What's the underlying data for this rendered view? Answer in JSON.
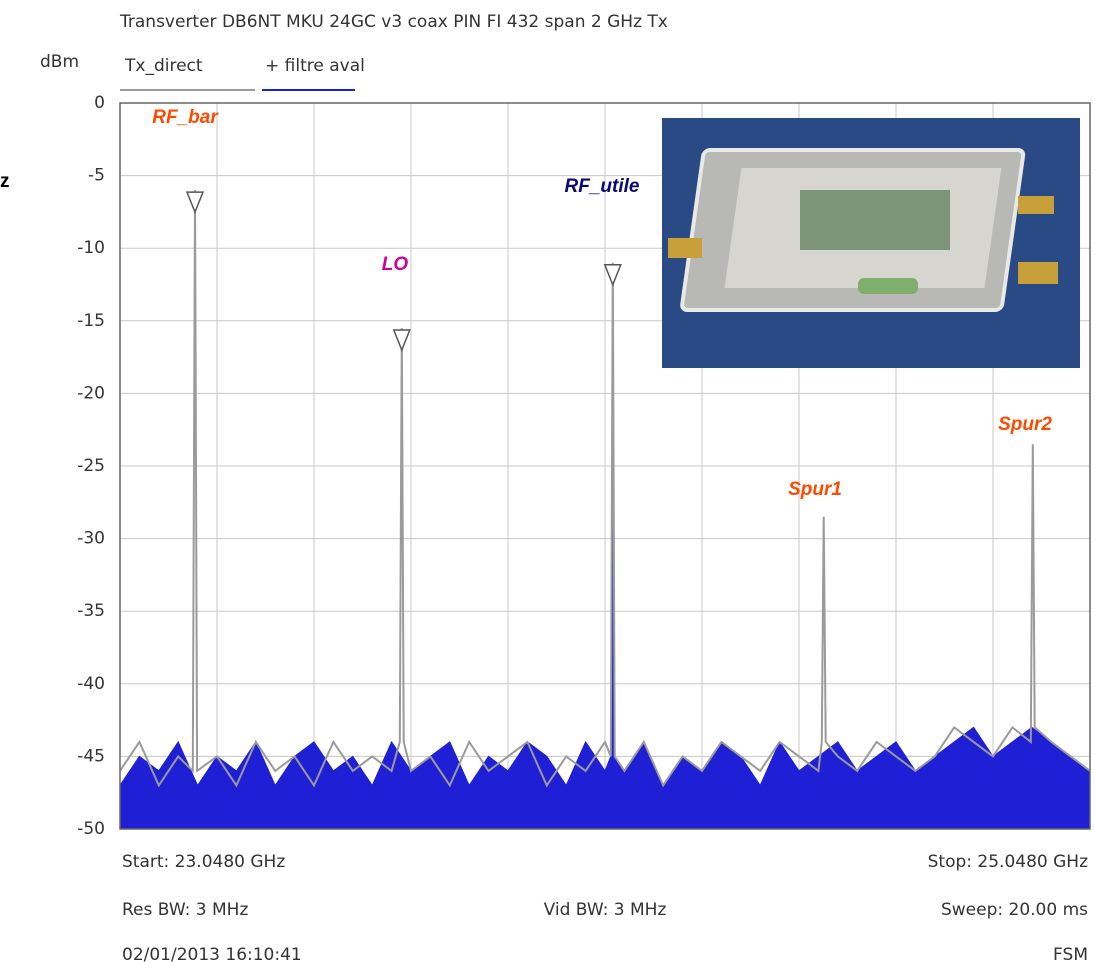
{
  "chart_data": {
    "type": "spectrum",
    "title": "Transverter DB6NT MKU 24GC v3 coax PIN FI 432 span 2 GHz Tx",
    "y_label": "dBm",
    "edge_text": "z",
    "xlim": [
      23.048,
      25.048
    ],
    "x_divisions": 10,
    "ylim": [
      -50,
      0
    ],
    "yticks": [
      0,
      -5,
      -10,
      -15,
      -20,
      -25,
      -30,
      -35,
      -40,
      -45,
      -50
    ],
    "grid": true,
    "series": [
      {
        "name": "Tx_direct",
        "color": "#9a9a9a",
        "style": "line",
        "x": [
          23.048,
          23.088,
          23.128,
          23.168,
          23.198,
          23.2026,
          23.207,
          23.248,
          23.288,
          23.328,
          23.368,
          23.408,
          23.448,
          23.488,
          23.528,
          23.568,
          23.608,
          23.625,
          23.629,
          23.633,
          23.648,
          23.688,
          23.728,
          23.768,
          23.808,
          23.848,
          23.888,
          23.928,
          23.968,
          24.008,
          24.048,
          24.06,
          24.064,
          24.068,
          24.088,
          24.128,
          24.168,
          24.208,
          24.248,
          24.288,
          24.328,
          24.368,
          24.408,
          24.448,
          24.488,
          24.495,
          24.499,
          24.503,
          24.528,
          24.568,
          24.608,
          24.648,
          24.688,
          24.728,
          24.768,
          24.808,
          24.848,
          24.888,
          24.926,
          24.93,
          24.934,
          24.968,
          25.008,
          25.048
        ],
        "values": [
          -46,
          -44,
          -47,
          -45,
          -46,
          -6,
          -46,
          -45,
          -47,
          -44,
          -46,
          -45,
          -47,
          -44,
          -46,
          -45,
          -46,
          -44,
          -15.5,
          -44,
          -46,
          -45,
          -47,
          -44,
          -46,
          -45,
          -44,
          -47,
          -45,
          -46,
          -44,
          -45,
          -11,
          -45,
          -46,
          -44,
          -47,
          -45,
          -46,
          -44,
          -45,
          -46,
          -44,
          -45,
          -46,
          -44,
          -28.5,
          -44,
          -45,
          -46,
          -44,
          -45,
          -46,
          -45,
          -43,
          -44,
          -45,
          -43,
          -44,
          -23.5,
          -43,
          -44,
          -45,
          -46
        ]
      },
      {
        "name": "+ filtre aval",
        "color": "#1f1fd6",
        "style": "area",
        "x": [
          23.048,
          23.088,
          23.128,
          23.168,
          23.208,
          23.248,
          23.288,
          23.328,
          23.368,
          23.408,
          23.448,
          23.488,
          23.528,
          23.568,
          23.608,
          23.648,
          23.688,
          23.728,
          23.768,
          23.808,
          23.848,
          23.888,
          23.928,
          23.968,
          24.008,
          24.048,
          24.06,
          24.064,
          24.068,
          24.088,
          24.128,
          24.168,
          24.208,
          24.248,
          24.288,
          24.328,
          24.368,
          24.408,
          24.448,
          24.488,
          24.528,
          24.568,
          24.608,
          24.648,
          24.688,
          24.728,
          24.768,
          24.808,
          24.848,
          24.888,
          24.928,
          24.968,
          25.008,
          25.048
        ],
        "values": [
          -47,
          -45,
          -46,
          -44,
          -47,
          -45,
          -46,
          -44,
          -47,
          -45,
          -44,
          -46,
          -45,
          -47,
          -44,
          -46,
          -45,
          -44,
          -47,
          -45,
          -46,
          -44,
          -45,
          -47,
          -44,
          -46,
          -45,
          -13,
          -45,
          -46,
          -44,
          -47,
          -45,
          -46,
          -44,
          -45,
          -47,
          -44,
          -46,
          -45,
          -44,
          -46,
          -45,
          -44,
          -46,
          -45,
          -44,
          -43,
          -45,
          -44,
          -43,
          -44,
          -45,
          -46
        ]
      }
    ],
    "annotations": [
      {
        "text": "RF_bar",
        "color": "#ff4a00"
      },
      {
        "text": "LO",
        "color": "#cc0099"
      },
      {
        "text": "RF_utile",
        "color": "#0a0a6e"
      },
      {
        "text": "Spur1",
        "color": "#ff4a00"
      },
      {
        "text": "Spur2",
        "color": "#ff4a00"
      }
    ],
    "footer": {
      "start": "Start: 23.0480 GHz",
      "stop": "Stop: 25.0480 GHz",
      "res_bw": "Res BW: 3 MHz",
      "vid_bw": "Vid BW: 3 MHz",
      "sweep": "Sweep: 20.00 ms",
      "timestamp": "02/01/2013 16:10:41",
      "device": "FSM"
    }
  }
}
